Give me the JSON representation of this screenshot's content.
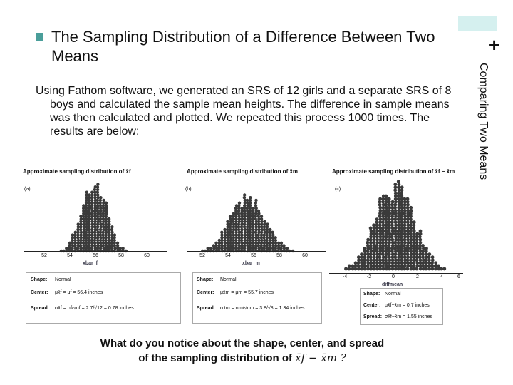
{
  "slide": {
    "title": "The Sampling Distribution of a Difference Between Two Means",
    "side_title": "Comparing Two Means",
    "plus_symbol": "+",
    "body": "Using Fathom software, we generated an SRS of 12 girls and a separate SRS of 8 boys and calculated the sample mean heights. The difference in sample means was then calculated and plotted.  We repeated this process 1000 times.  The results are below:",
    "question_line1": "What do you notice about the shape, center, and spread",
    "question_line2": "of the sampling distribution of",
    "question_expr": "x̄f − x̄m ?"
  },
  "panels": [
    {
      "label": "(a)",
      "title": "Approximate sampling distribution of x̄f",
      "xname": "xbar_f",
      "ticks": [
        "52",
        "54",
        "56",
        "58",
        "60"
      ],
      "stats": {
        "shape_key": "Shape:",
        "shape_val": "Normal",
        "center_key": "Center:",
        "center_val": "μx̄f = μf = 56.4 inches",
        "spread_key": "Spread:",
        "spread_val": "σx̄f = σf/√nf = 2.7/√12 = 0.78 inches"
      }
    },
    {
      "label": "(b)",
      "title": "Approximate sampling distribution of x̄m",
      "xname": "xbar_m",
      "ticks": [
        "52",
        "54",
        "56",
        "58",
        "60"
      ],
      "stats": {
        "shape_key": "Shape:",
        "shape_val": "Normal",
        "center_key": "Center:",
        "center_val": "μx̄m = μm = 55.7 inches",
        "spread_key": "Spread:",
        "spread_val": "σx̄m = σm/√nm = 3.8/√8 = 1.34 inches"
      }
    },
    {
      "label": "(c)",
      "title": "Approximate sampling distribution of x̄f − x̄m",
      "xname": "diffmean",
      "ticks": [
        "-4",
        "-2",
        "0",
        "2",
        "4",
        "6"
      ],
      "stats": {
        "shape_key": "Shape:",
        "shape_val": "Normal",
        "center_key": "Center:",
        "center_val": "μx̄f−x̄m = 0.7 inches",
        "spread_key": "Spread:",
        "spread_val": "σx̄f−x̄m = 1.55 inches"
      }
    }
  ],
  "colors": {
    "dot": "#3a3a3a",
    "accent": "#4a9e9a",
    "accent_light": "#d5f0ef"
  }
}
